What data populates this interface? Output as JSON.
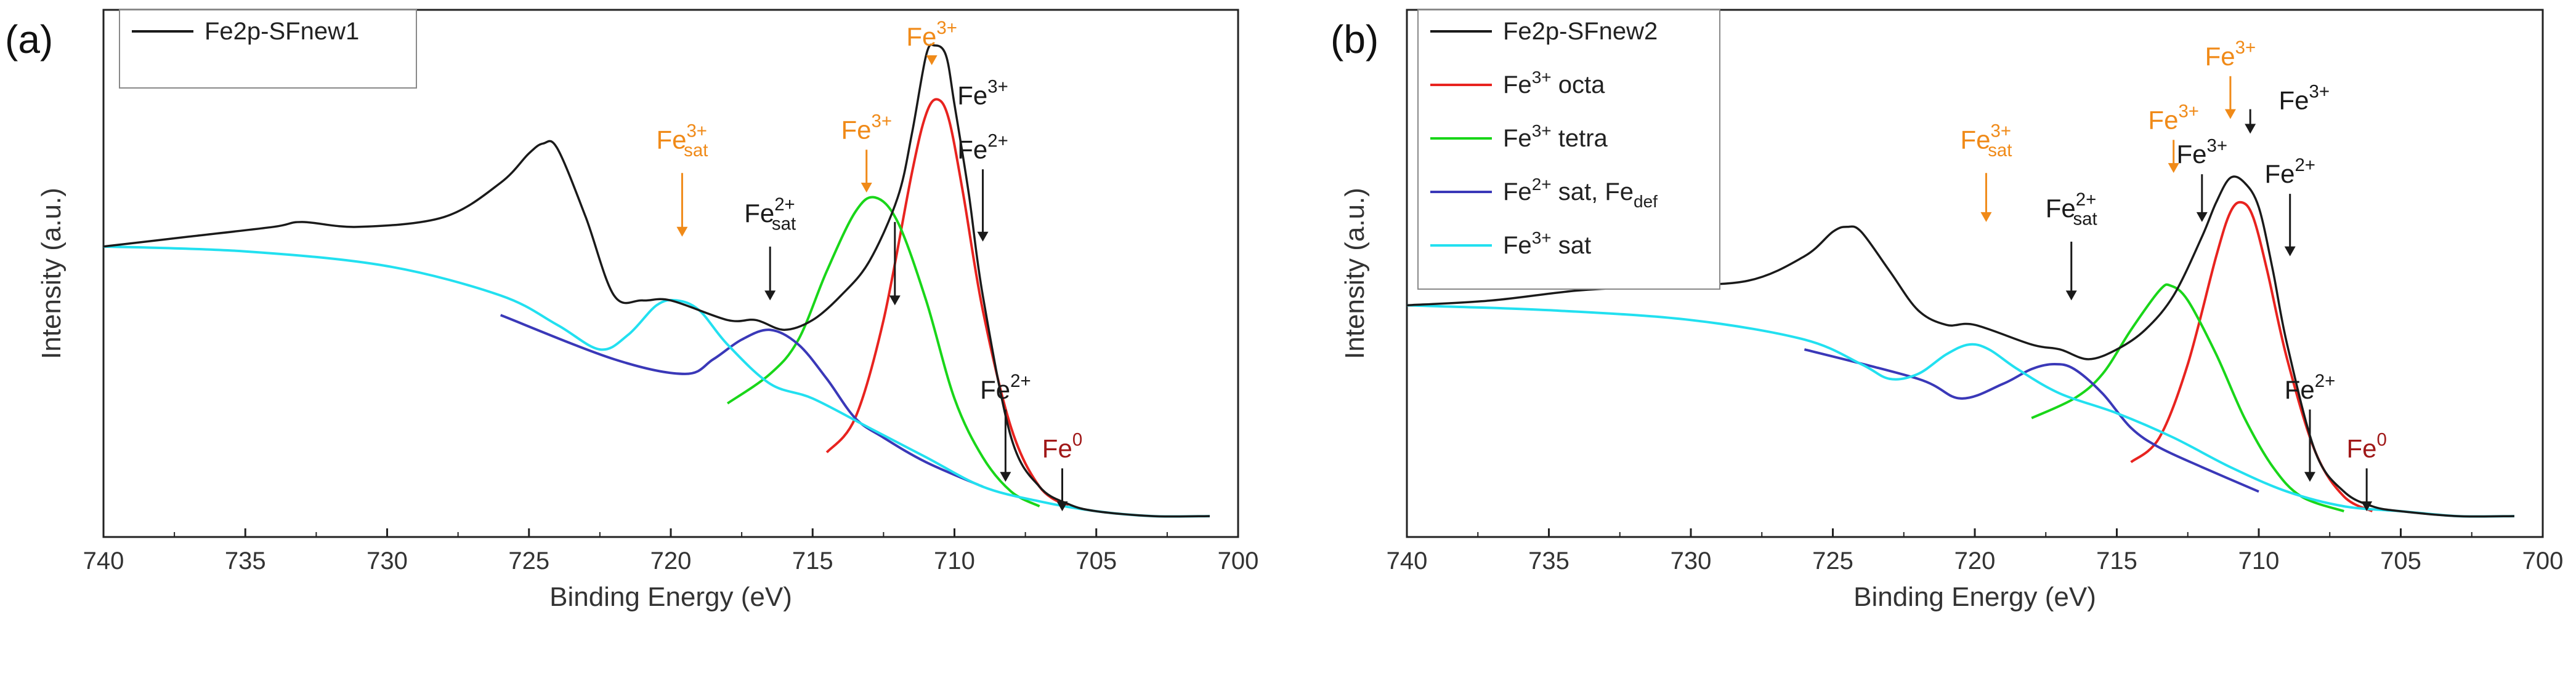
{
  "figure": {
    "panels": [
      "(a)",
      "(b)"
    ]
  },
  "colors": {
    "experimental": "#1a1a1a",
    "fe3_octa": "#e8231f",
    "fe3_tetra": "#19d619",
    "fe2_sat": "#3a38b8",
    "fe3_sat": "#22e0f0",
    "label_orange": "#f08a18",
    "label_black": "#1a1a1a",
    "label_darkred": "#a01818"
  },
  "chart_data": [
    {
      "type": "line",
      "panel": "(a)",
      "xlabel": "Binding Energy (eV)",
      "ylabel": "Intensity (a.u.)",
      "xlim": [
        740,
        700
      ],
      "xticks": [
        "740",
        "735",
        "730",
        "725",
        "720",
        "715",
        "710",
        "705",
        "700"
      ],
      "ylim": [
        0,
        1
      ],
      "legend": [
        "Fe2p-SFnew1"
      ],
      "series": [
        {
          "name": "Fe2p-SFnew1",
          "role": "experimental",
          "x": [
            740,
            737,
            734,
            733,
            731,
            728,
            726,
            725,
            724.5,
            724,
            723,
            722,
            721,
            720,
            718,
            717,
            716,
            715,
            714,
            713,
            712,
            711.5,
            711,
            710.7,
            710.3,
            710,
            709.5,
            709,
            708,
            707,
            706,
            705,
            703,
            701
          ],
          "y": [
            0.57,
            0.59,
            0.61,
            0.62,
            0.61,
            0.63,
            0.7,
            0.76,
            0.78,
            0.77,
            0.63,
            0.47,
            0.46,
            0.46,
            0.42,
            0.42,
            0.4,
            0.42,
            0.47,
            0.54,
            0.67,
            0.8,
            0.96,
            0.98,
            0.96,
            0.86,
            0.68,
            0.47,
            0.18,
            0.08,
            0.045,
            0.03,
            0.02,
            0.02
          ]
        },
        {
          "name": "Fe3+ octa",
          "role": "fit",
          "x": [
            714.5,
            713.5,
            712.5,
            711.5,
            711,
            710.6,
            710.2,
            709.7,
            709,
            708,
            707,
            706
          ],
          "y": [
            0.15,
            0.22,
            0.42,
            0.72,
            0.84,
            0.87,
            0.83,
            0.68,
            0.44,
            0.2,
            0.08,
            0.04
          ]
        },
        {
          "name": "Fe3+ tetra",
          "role": "fit",
          "x": [
            718,
            716.5,
            715.5,
            714.5,
            713.5,
            712.8,
            712,
            711,
            710,
            709,
            708,
            707
          ],
          "y": [
            0.25,
            0.31,
            0.38,
            0.52,
            0.64,
            0.67,
            0.62,
            0.46,
            0.26,
            0.14,
            0.07,
            0.04
          ]
        },
        {
          "name": "Fe2+ sat",
          "role": "fit",
          "x": [
            726,
            722,
            719.5,
            718.5,
            717.5,
            716.5,
            715.5,
            714.5,
            713.5,
            712.5,
            711,
            709
          ],
          "y": [
            0.43,
            0.34,
            0.31,
            0.34,
            0.38,
            0.4,
            0.37,
            0.3,
            0.22,
            0.18,
            0.13,
            0.08
          ]
        },
        {
          "name": "Fe3+ sat",
          "role": "fit",
          "x": [
            740,
            735,
            730,
            726,
            724,
            722.5,
            721.5,
            720.5,
            719.8,
            719,
            718,
            716.5,
            715,
            713,
            711,
            709,
            707,
            705,
            703,
            701
          ],
          "y": [
            0.57,
            0.56,
            0.53,
            0.47,
            0.41,
            0.36,
            0.39,
            0.45,
            0.46,
            0.44,
            0.37,
            0.29,
            0.26,
            0.2,
            0.14,
            0.08,
            0.05,
            0.03,
            0.02,
            0.02
          ]
        }
      ],
      "annotations": [
        {
          "text": "Fe",
          "sup": "3+",
          "sub": "sat",
          "color": "label_orange",
          "x": 719.6,
          "y": 0.77,
          "arrow": true,
          "arrow_color": "label_orange",
          "arrow_to": 0.59
        },
        {
          "text": "Fe",
          "sup": "2+",
          "sub": "sat",
          "color": "label_black",
          "x": 716.5,
          "y": 0.62,
          "arrow": true,
          "arrow_color": "label_black",
          "arrow_to": 0.46
        },
        {
          "text": "Fe",
          "sup": "3+",
          "sub": "",
          "color": "label_orange",
          "x": 713.1,
          "y": 0.79,
          "arrow": true,
          "arrow_color": "label_orange",
          "arrow_to": 0.68
        },
        {
          "text": "Fe",
          "sup": "3+",
          "sub": "",
          "color": "label_orange",
          "x": 710.8,
          "y": 0.98,
          "arrow": true,
          "arrow_color": "label_orange",
          "arrow_to": 0.94
        },
        {
          "text": "Fe",
          "sup": "3+",
          "sub": "",
          "color": "label_black",
          "x": 709.0,
          "y": 0.86,
          "arrow": false
        },
        {
          "text": "Fe",
          "sup": "3+",
          "sub": "",
          "color": "label_black",
          "x": 712.1,
          "y": 0.62,
          "arrow": true,
          "arrow_color": "label_black",
          "arrow_to": 0.45,
          "label": false
        },
        {
          "text": "Fe",
          "sup": "2+",
          "sub": "",
          "color": "label_black",
          "x": 709.0,
          "y": 0.75,
          "arrow": true,
          "arrow_color": "label_black",
          "arrow_to": 0.58
        },
        {
          "text": "Fe",
          "sup": "2+",
          "sub": "",
          "color": "label_black",
          "x": 708.2,
          "y": 0.26,
          "arrow": true,
          "arrow_color": "label_black",
          "arrow_to": 0.09
        },
        {
          "text": "Fe",
          "sup": "0",
          "sub": "",
          "color": "label_darkred",
          "x": 706.2,
          "y": 0.14,
          "arrow": true,
          "arrow_color": "label_black",
          "arrow_to": 0.03
        }
      ]
    },
    {
      "type": "line",
      "panel": "(b)",
      "xlabel": "Binding Energy (eV)",
      "ylabel": "Intensity (a.u.)",
      "xlim": [
        740,
        700
      ],
      "xticks": [
        "740",
        "735",
        "730",
        "725",
        "720",
        "715",
        "710",
        "705",
        "700"
      ],
      "ylim": [
        0,
        1
      ],
      "legend": [
        "Fe2p-SFnew2",
        "Fe3+ octa",
        "Fe3+ tetra",
        "Fe2+ sat, Fedef",
        "Fe3+ sat"
      ],
      "series": [
        {
          "name": "Fe2p-SFnew2",
          "role": "experimental",
          "x": [
            740,
            737,
            734,
            731,
            728,
            726,
            725,
            724.5,
            724,
            723,
            722,
            721,
            720,
            718,
            717,
            716,
            715,
            714,
            713,
            712,
            711.5,
            711,
            710.5,
            710,
            709.5,
            709,
            708,
            707,
            706,
            705,
            703,
            701
          ],
          "y": [
            0.45,
            0.46,
            0.48,
            0.49,
            0.5,
            0.55,
            0.6,
            0.61,
            0.6,
            0.52,
            0.44,
            0.41,
            0.41,
            0.37,
            0.36,
            0.34,
            0.36,
            0.4,
            0.47,
            0.59,
            0.66,
            0.71,
            0.7,
            0.65,
            0.52,
            0.37,
            0.15,
            0.07,
            0.04,
            0.03,
            0.02,
            0.02
          ]
        },
        {
          "name": "Fe3+ octa",
          "role": "fit",
          "x": [
            714.5,
            713.5,
            712.5,
            711.5,
            711,
            710.6,
            710.2,
            709.7,
            709,
            708,
            707,
            706
          ],
          "y": [
            0.13,
            0.18,
            0.33,
            0.55,
            0.64,
            0.66,
            0.63,
            0.52,
            0.34,
            0.15,
            0.06,
            0.03
          ]
        },
        {
          "name": "Fe3+ tetra",
          "role": "fit",
          "x": [
            718,
            716.5,
            715.5,
            714.5,
            713.5,
            713.1,
            712.5,
            711.5,
            710.5,
            709.5,
            708.5,
            707
          ],
          "y": [
            0.22,
            0.26,
            0.31,
            0.4,
            0.48,
            0.49,
            0.46,
            0.35,
            0.22,
            0.12,
            0.06,
            0.03
          ]
        },
        {
          "name": "Fe2+ sat, Fedef",
          "role": "fit",
          "x": [
            726,
            722,
            720.5,
            719,
            718,
            717.2,
            716.5,
            715.5,
            714.5,
            713.5,
            712,
            710
          ],
          "y": [
            0.36,
            0.3,
            0.26,
            0.29,
            0.32,
            0.33,
            0.32,
            0.27,
            0.2,
            0.16,
            0.12,
            0.07
          ]
        },
        {
          "name": "Fe3+ sat",
          "role": "fit",
          "x": [
            740,
            735,
            730,
            726,
            724,
            723,
            722,
            721,
            720.2,
            719.5,
            718.5,
            717,
            715,
            713,
            711,
            709,
            707,
            705,
            703,
            701
          ],
          "y": [
            0.45,
            0.44,
            0.42,
            0.38,
            0.33,
            0.3,
            0.31,
            0.35,
            0.37,
            0.36,
            0.32,
            0.27,
            0.23,
            0.18,
            0.12,
            0.07,
            0.04,
            0.03,
            0.02,
            0.02
          ]
        }
      ],
      "annotations": [
        {
          "text": "Fe",
          "sup": "3+",
          "sub": "sat",
          "color": "label_orange",
          "x": 719.6,
          "y": 0.77,
          "arrow": true,
          "arrow_color": "label_orange",
          "arrow_to": 0.62
        },
        {
          "text": "Fe",
          "sup": "2+",
          "sub": "sat",
          "color": "label_black",
          "x": 716.6,
          "y": 0.63,
          "arrow": true,
          "arrow_color": "label_black",
          "arrow_to": 0.46
        },
        {
          "text": "Fe",
          "sup": "3+",
          "sub": "",
          "color": "label_orange",
          "x": 713.0,
          "y": 0.81,
          "arrow": true,
          "arrow_color": "label_orange",
          "arrow_to": 0.72
        },
        {
          "text": "Fe",
          "sup": "3+",
          "sub": "",
          "color": "label_orange",
          "x": 711.0,
          "y": 0.94,
          "arrow": true,
          "arrow_color": "label_orange",
          "arrow_to": 0.83
        },
        {
          "text": "Fe",
          "sup": "3+",
          "sub": "",
          "color": "label_black",
          "x": 708.4,
          "y": 0.85,
          "arrow": false
        },
        {
          "text": "Fe",
          "sup": "3+",
          "sub": "",
          "color": "label_black",
          "x": 712.0,
          "y": 0.74,
          "arrow": true,
          "arrow_color": "label_black",
          "arrow_to": 0.62
        },
        {
          "text": "",
          "sup": "",
          "sub": "",
          "color": "label_black",
          "x": 710.3,
          "y": 0.85,
          "arrow": true,
          "arrow_color": "label_black",
          "arrow_to": 0.8,
          "label": false
        },
        {
          "text": "Fe",
          "sup": "2+",
          "sub": "",
          "color": "label_black",
          "x": 708.9,
          "y": 0.7,
          "arrow": true,
          "arrow_color": "label_black",
          "arrow_to": 0.55
        },
        {
          "text": "Fe",
          "sup": "2+",
          "sub": "",
          "color": "label_black",
          "x": 708.2,
          "y": 0.26,
          "arrow": true,
          "arrow_color": "label_black",
          "arrow_to": 0.09
        },
        {
          "text": "Fe",
          "sup": "0",
          "sub": "",
          "color": "label_darkred",
          "x": 706.2,
          "y": 0.14,
          "arrow": true,
          "arrow_color": "label_black",
          "arrow_to": 0.03
        }
      ]
    }
  ]
}
